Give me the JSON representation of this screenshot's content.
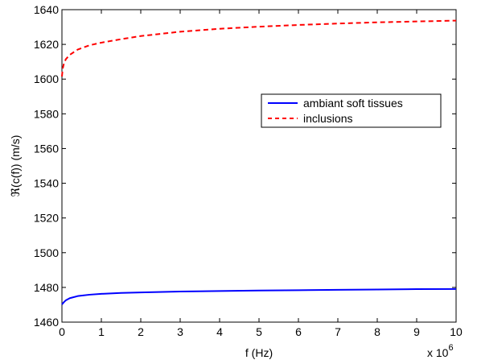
{
  "chart_data": {
    "type": "line",
    "xlabel": "f (Hz)",
    "ylabel": "ℜ(c(f)) (m/s)",
    "x_multiplier_text": "x 10",
    "x_multiplier_exponent": "6",
    "xlim": [
      0,
      10000000
    ],
    "ylim": [
      1460,
      1640
    ],
    "x_ticks": [
      0,
      1,
      2,
      3,
      4,
      5,
      6,
      7,
      8,
      9,
      10
    ],
    "y_ticks": [
      1460,
      1480,
      1500,
      1520,
      1540,
      1560,
      1580,
      1600,
      1620,
      1640
    ],
    "grid": false,
    "legend_position": "right-upper-middle",
    "series": [
      {
        "name": "ambiant soft tissues",
        "color": "#0000ff",
        "style": "solid",
        "x": [
          0,
          50000,
          100000,
          200000,
          400000,
          700000,
          1000000,
          1500000,
          2000000,
          3000000,
          4000000,
          5000000,
          6000000,
          7000000,
          8000000,
          9000000,
          10000000
        ],
        "y": [
          1470.2,
          1471.5,
          1472.6,
          1473.8,
          1475.0,
          1475.8,
          1476.3,
          1476.8,
          1477.1,
          1477.6,
          1477.9,
          1478.2,
          1478.4,
          1478.6,
          1478.8,
          1479.0,
          1479.1
        ]
      },
      {
        "name": "inclusions",
        "color": "#ff0000",
        "style": "dashed",
        "x": [
          0,
          20000,
          50000,
          100000,
          200000,
          400000,
          700000,
          1000000,
          1500000,
          2000000,
          3000000,
          4000000,
          5000000,
          6000000,
          7000000,
          8000000,
          9000000,
          10000000
        ],
        "y": [
          1601.5,
          1606.0,
          1609.0,
          1611.5,
          1614.0,
          1617.0,
          1619.5,
          1621.0,
          1623.0,
          1624.8,
          1627.3,
          1629.0,
          1630.2,
          1631.2,
          1632.0,
          1632.7,
          1633.2,
          1633.7
        ]
      }
    ]
  }
}
